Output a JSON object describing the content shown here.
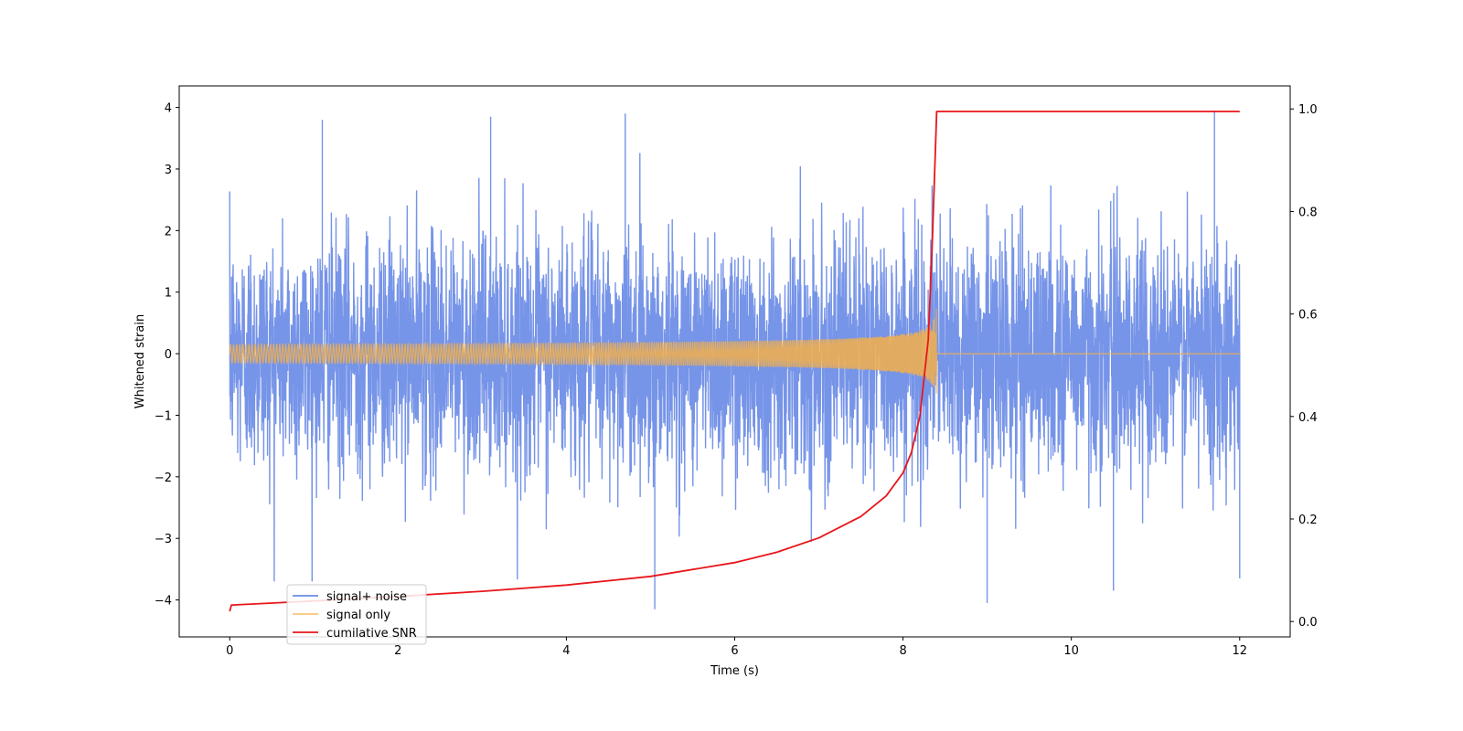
{
  "chart_data": {
    "type": "line",
    "title": "",
    "xlabel": "Time (s)",
    "ylabel": "Whitened strain",
    "y2label": "",
    "xlim": [
      -0.6,
      12.6
    ],
    "ylim": [
      -4.6,
      4.35
    ],
    "y2lim": [
      -0.03,
      1.045
    ],
    "x_ticks": [
      0,
      2,
      4,
      6,
      8,
      10,
      12
    ],
    "y_ticks": [
      -4,
      -3,
      -2,
      -1,
      0,
      1,
      2,
      3,
      4
    ],
    "y2_ticks": [
      0.0,
      0.2,
      0.4,
      0.6,
      0.8,
      1.0
    ],
    "x_tick_labels": [
      "0",
      "2",
      "4",
      "6",
      "8",
      "10",
      "12"
    ],
    "y_tick_labels": [
      "−4",
      "−3",
      "−2",
      "−1",
      "0",
      "1",
      "2",
      "3",
      "4"
    ],
    "y2_tick_labels": [
      "0.0",
      "0.2",
      "0.4",
      "0.6",
      "0.8",
      "1.0"
    ],
    "legend_position": "lower-left",
    "grid": false,
    "series": [
      {
        "name": "signal+ noise",
        "color": "#6a8be6",
        "axis": "left",
        "style": "noisy waveform",
        "x_range": [
          0,
          12
        ],
        "y_typical_range": [
          -2.5,
          2.5
        ],
        "peaks": [
          [
            1.1,
            3.8
          ],
          [
            3.1,
            3.85
          ],
          [
            4.7,
            3.9
          ],
          [
            11.7,
            3.95
          ]
        ],
        "troughs": [
          [
            5.05,
            -4.15
          ],
          [
            9.0,
            -4.05
          ],
          [
            12.0,
            -3.65
          ],
          [
            10.5,
            -3.85
          ]
        ]
      },
      {
        "name": "signal only",
        "color": "#f5b04a",
        "axis": "left",
        "style": "chirp",
        "x_range": [
          0,
          12
        ],
        "merger_time": 8.4,
        "peak_amplitude": 0.85
      },
      {
        "name": "cumilative SNR",
        "color": "#e8161a",
        "axis": "right",
        "x": [
          0,
          0.02,
          0.5,
          1,
          2,
          3,
          4,
          5,
          6,
          6.5,
          7,
          7.5,
          7.8,
          8.0,
          8.1,
          8.2,
          8.3,
          8.35,
          8.4,
          9,
          10,
          11,
          12
        ],
        "values": [
          0.02,
          0.032,
          0.036,
          0.04,
          0.049,
          0.059,
          0.071,
          0.088,
          0.115,
          0.135,
          0.163,
          0.205,
          0.245,
          0.29,
          0.33,
          0.4,
          0.55,
          0.75,
          0.995,
          0.995,
          0.995,
          0.995,
          0.995
        ]
      }
    ]
  }
}
